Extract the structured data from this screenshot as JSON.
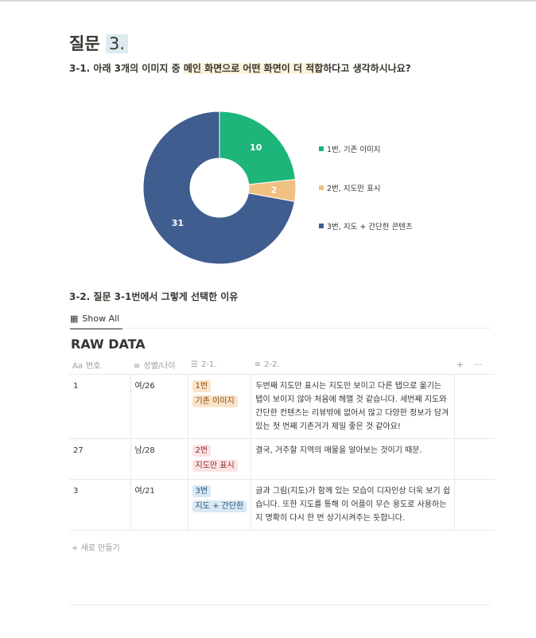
{
  "question": {
    "title_prefix": "질문",
    "title_number": "3.",
    "sub_before": "3-1. 아래 3개의 이미지 중 ",
    "sub_highlight": "메인 화면으로 어떤 화면이 더 적합",
    "sub_after": "하다고 생각하시나요?"
  },
  "chart_data": {
    "type": "pie",
    "donut": true,
    "categories": [
      "1번, 기존 이미지",
      "2번, 지도만 표시",
      "3번, 지도 + 간단한 콘텐츠"
    ],
    "values": [
      10,
      2,
      31
    ],
    "colors": [
      "#1db57a",
      "#f0c080",
      "#3f5d8f"
    ],
    "legend_position": "right"
  },
  "question2": {
    "title": "3-2. 질문 3-1번에서 그렇게 선택한 이유"
  },
  "tabs": {
    "show_all": "Show All"
  },
  "database": {
    "title": "RAW DATA",
    "columns": [
      "번호",
      "성별/나이",
      "2-1.",
      "2-2."
    ],
    "add_icon": "+",
    "more_icon": "···",
    "rows": [
      {
        "num": "1",
        "gender_age": "여/26",
        "tags": [
          "1번",
          "기존 이미지"
        ],
        "tag_color": "orange",
        "reason": "두번째 지도만 표시는 지도만 보이고 다른 탭으로 옮기는 탭이 보이지 않아 처음에 헤맬 것 같습니다. 세번째 지도와 간단한 컨텐츠는 리뷰밖에 없어서 많고 다양한 정보가 담겨있는 첫 번째 기존거가 제일 좋은 것 같아요!"
      },
      {
        "num": "27",
        "gender_age": "남/28",
        "tags": [
          "2번",
          "지도만 표시"
        ],
        "tag_color": "red",
        "reason": "결국, 거주할 지역의 매물을 알아보는 것이기 때문."
      },
      {
        "num": "3",
        "gender_age": "여/21",
        "tags": [
          "3번",
          "지도 + 간단한"
        ],
        "tag_color": "blue",
        "reason": "글과 그림(지도)가 함께 있는 모습이 디자인상 더욱 보기 쉽습니다. 또한 지도를 통해 이 어플이 무슨 용도로 사용하는지 명확히 다시 한 번 상기시켜주는 듯합니다."
      }
    ],
    "new_row": "새로 만들기"
  }
}
